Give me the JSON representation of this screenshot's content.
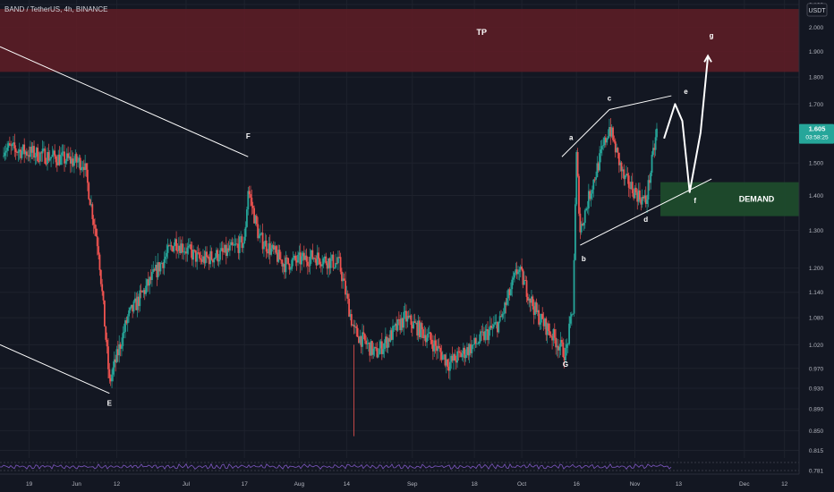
{
  "header": {
    "symbol": "BAND / TetherUS, 4h, BINANCE",
    "currency": "USDT"
  },
  "price_badge": {
    "price": "1.605",
    "countdown": "03:58:25"
  },
  "colors": {
    "background": "#131722",
    "up": "#26a69a",
    "down": "#ef5350",
    "tp_zone": "#5c1d26",
    "demand_zone": "#1e4b2c",
    "drawing": "#ffffff",
    "oscillator": "#7e57c2",
    "price_badge": "#26a69a"
  },
  "zones": {
    "tp": {
      "label": "TP",
      "low": 1.82,
      "high": 2.08
    },
    "demand": {
      "label": "DEMAND",
      "low": 1.34,
      "high": 1.44
    }
  },
  "chart_data": {
    "type": "candlestick",
    "symbol": "BAND / TetherUS",
    "interval": "4h",
    "exchange": "BINANCE",
    "y_scale": "log",
    "ylim": [
      0.775,
      2.12
    ],
    "y_ticks": [
      2.1,
      2.0,
      1.9,
      1.8,
      1.7,
      1.6,
      1.5,
      1.4,
      1.3,
      1.2,
      1.14,
      1.08,
      1.02,
      0.97,
      0.93,
      0.89,
      0.85,
      0.815,
      0.781
    ],
    "x_ticks": [
      "19",
      "Jun",
      "12",
      "Jul",
      "17",
      "Aug",
      "14",
      "Sep",
      "18",
      "Oct",
      "16",
      "Nov",
      "13",
      "Dec",
      "12"
    ],
    "last_price": 1.605,
    "wave_labels": [
      {
        "label": "E",
        "date": "2023-06-10",
        "price": 0.92
      },
      {
        "label": "F",
        "date": "2023-07-18",
        "price": 1.52
      },
      {
        "label": "G",
        "date": "2023-10-13",
        "price": 1.0
      },
      {
        "label": "a",
        "date": "2023-10-16",
        "price": 1.54
      },
      {
        "label": "b",
        "date": "2023-10-17",
        "price": 1.25
      },
      {
        "label": "c",
        "date": "2023-10-25",
        "price": 1.68
      },
      {
        "label": "d",
        "date": "2023-11-04",
        "price": 1.36
      },
      {
        "label": "e",
        "date": "2023-11-14",
        "price": 1.71
      },
      {
        "label": "f",
        "date": "2023-11-16",
        "price": 1.41
      },
      {
        "label": "g",
        "date": "2023-11-21",
        "price": 1.89
      }
    ],
    "candles_summary": [
      {
        "date": "2023-05-12",
        "price": 1.55
      },
      {
        "date": "2023-05-25",
        "price": 1.52
      },
      {
        "date": "2023-06-03",
        "price": 1.5
      },
      {
        "date": "2023-06-07",
        "price": 1.25
      },
      {
        "date": "2023-06-10",
        "price": 0.94
      },
      {
        "date": "2023-06-15",
        "price": 1.08
      },
      {
        "date": "2023-06-22",
        "price": 1.18
      },
      {
        "date": "2023-06-28",
        "price": 1.27
      },
      {
        "date": "2023-07-05",
        "price": 1.22
      },
      {
        "date": "2023-07-12",
        "price": 1.24
      },
      {
        "date": "2023-07-17",
        "price": 1.27
      },
      {
        "date": "2023-07-18",
        "price": 1.42
      },
      {
        "date": "2023-07-21",
        "price": 1.28
      },
      {
        "date": "2023-07-28",
        "price": 1.21
      },
      {
        "date": "2023-08-05",
        "price": 1.23
      },
      {
        "date": "2023-08-12",
        "price": 1.21
      },
      {
        "date": "2023-08-16",
        "price": 1.05
      },
      {
        "date": "2023-08-22",
        "price": 1.0
      },
      {
        "date": "2023-08-30",
        "price": 1.08
      },
      {
        "date": "2023-09-05",
        "price": 1.04
      },
      {
        "date": "2023-09-11",
        "price": 0.98
      },
      {
        "date": "2023-09-18",
        "price": 1.02
      },
      {
        "date": "2023-09-25",
        "price": 1.07
      },
      {
        "date": "2023-09-30",
        "price": 1.2
      },
      {
        "date": "2023-10-05",
        "price": 1.09
      },
      {
        "date": "2023-10-13",
        "price": 1.0
      },
      {
        "date": "2023-10-15",
        "price": 1.1
      },
      {
        "date": "2023-10-16",
        "price": 1.52
      },
      {
        "date": "2023-10-17",
        "price": 1.3
      },
      {
        "date": "2023-10-20",
        "price": 1.42
      },
      {
        "date": "2023-10-25",
        "price": 1.62
      },
      {
        "date": "2023-10-29",
        "price": 1.45
      },
      {
        "date": "2023-11-02",
        "price": 1.4
      },
      {
        "date": "2023-11-04",
        "price": 1.38
      },
      {
        "date": "2023-11-07",
        "price": 1.605
      }
    ]
  }
}
